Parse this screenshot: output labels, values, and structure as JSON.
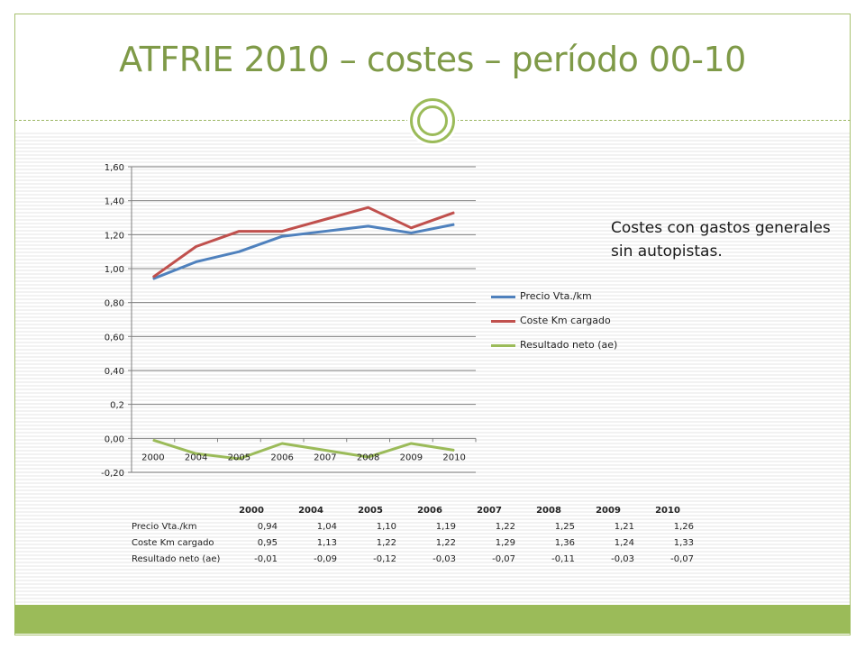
{
  "slide": {
    "title": "ATFRIE 2010 – costes – período 00-10",
    "note": "Costes con gastos generales sin autopistas."
  },
  "colors": {
    "accent": "#9bbb59",
    "title": "#7f9a48",
    "series_blue": "#4f81bd",
    "series_red": "#c0504d",
    "series_green": "#9bbb59"
  },
  "chart_data": {
    "type": "line",
    "categories": [
      "2000",
      "2004",
      "2005",
      "2006",
      "2007",
      "2008",
      "2009",
      "2010"
    ],
    "series": [
      {
        "name": "Precio Vta./km",
        "values": [
          0.94,
          1.04,
          1.1,
          1.19,
          1.22,
          1.25,
          1.21,
          1.26
        ],
        "color": "#4f81bd"
      },
      {
        "name": "Coste Km cargado",
        "values": [
          0.95,
          1.13,
          1.22,
          1.22,
          1.29,
          1.36,
          1.24,
          1.33
        ],
        "color": "#c0504d"
      },
      {
        "name": "Resultado neto (ae)",
        "values": [
          -0.01,
          -0.09,
          -0.12,
          -0.03,
          -0.07,
          -0.11,
          -0.03,
          -0.07
        ],
        "color": "#9bbb59"
      }
    ],
    "yticks": [
      "-0,20",
      "0,00",
      "0,2",
      "0,40",
      "0,60",
      "0,80",
      "1,00",
      "1,20",
      "1,40",
      "1,60"
    ],
    "ylim": [
      -0.2,
      1.6
    ],
    "grid": true,
    "legend_position": "right"
  },
  "table": {
    "headers": [
      "2000",
      "2004",
      "2005",
      "2006",
      "2007",
      "2008",
      "2009",
      "2010"
    ],
    "rows": [
      {
        "label": "Precio Vta./km",
        "values": [
          "0,94",
          "1,04",
          "1,10",
          "1,19",
          "1,22",
          "1,25",
          "1,21",
          "1,26"
        ]
      },
      {
        "label": "Coste Km cargado",
        "values": [
          "0,95",
          "1,13",
          "1,22",
          "1,22",
          "1,29",
          "1,36",
          "1,24",
          "1,33"
        ]
      },
      {
        "label": "Resultado neto (ae)",
        "values": [
          "-0,01",
          "-0,09",
          "-0,12",
          "-0,03",
          "-0,07",
          "-0,11",
          "-0,03",
          "-0,07"
        ]
      }
    ]
  }
}
